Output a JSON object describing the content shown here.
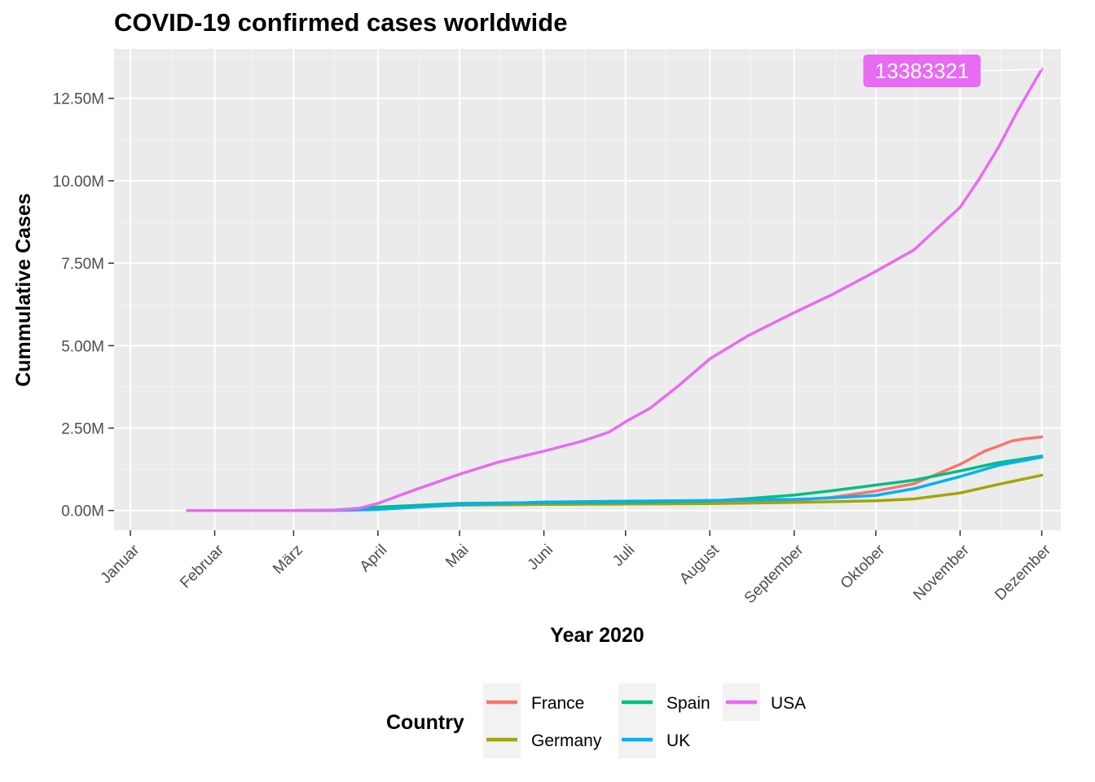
{
  "chart_data": {
    "type": "line",
    "title": "COVID-19 confirmed cases worldwide",
    "xlabel": "Year 2020",
    "ylabel": "Cummulative Cases",
    "x_ticks": [
      "Januar",
      "Februar",
      "März",
      "April",
      "Mai",
      "Juni",
      "Juli",
      "August",
      "September",
      "Oktober",
      "November",
      "Dezember"
    ],
    "y_ticks": [
      "0.00M",
      "2.50M",
      "5.00M",
      "7.50M",
      "10.00M",
      "12.50M"
    ],
    "ylim": [
      -600000,
      14000000
    ],
    "xlim": [
      "2019-12-26",
      "2020-12-08"
    ],
    "grid": true,
    "legend": {
      "title": "Country",
      "position": "bottom",
      "entries": [
        "France",
        "Germany",
        "Spain",
        "UK",
        "USA"
      ]
    },
    "annotation": {
      "text": "13383321",
      "series": "USA",
      "x": "2020-12-01",
      "y": 13383321
    },
    "series": [
      {
        "name": "France",
        "color": "#F8766D",
        "points": [
          [
            "2020-01-22",
            0
          ],
          [
            "2020-03-01",
            100
          ],
          [
            "2020-03-15",
            5400
          ],
          [
            "2020-04-01",
            57000
          ],
          [
            "2020-05-01",
            168000
          ],
          [
            "2020-06-01",
            189000
          ],
          [
            "2020-07-01",
            202000
          ],
          [
            "2020-08-01",
            226000
          ],
          [
            "2020-09-01",
            303000
          ],
          [
            "2020-09-15",
            400000
          ],
          [
            "2020-10-01",
            590000
          ],
          [
            "2020-10-15",
            810000
          ],
          [
            "2020-11-01",
            1400000
          ],
          [
            "2020-11-10",
            1800000
          ],
          [
            "2020-11-15",
            1950000
          ],
          [
            "2020-11-20",
            2110000
          ],
          [
            "2020-11-25",
            2180000
          ],
          [
            "2020-12-01",
            2230000
          ]
        ]
      },
      {
        "name": "Germany",
        "color": "#A3A500",
        "points": [
          [
            "2020-01-22",
            0
          ],
          [
            "2020-03-01",
            130
          ],
          [
            "2020-03-15",
            5800
          ],
          [
            "2020-04-01",
            77000
          ],
          [
            "2020-05-01",
            163000
          ],
          [
            "2020-06-01",
            183000
          ],
          [
            "2020-07-01",
            195000
          ],
          [
            "2020-08-01",
            211000
          ],
          [
            "2020-09-01",
            245000
          ],
          [
            "2020-10-01",
            295000
          ],
          [
            "2020-10-15",
            350000
          ],
          [
            "2020-11-01",
            532000
          ],
          [
            "2020-11-15",
            790000
          ],
          [
            "2020-12-01",
            1070000
          ]
        ]
      },
      {
        "name": "Spain",
        "color": "#00BF7D",
        "points": [
          [
            "2020-01-22",
            0
          ],
          [
            "2020-03-01",
            80
          ],
          [
            "2020-03-15",
            7800
          ],
          [
            "2020-04-01",
            104000
          ],
          [
            "2020-05-01",
            214000
          ],
          [
            "2020-06-01",
            240000
          ],
          [
            "2020-07-01",
            250000
          ],
          [
            "2020-08-01",
            290000
          ],
          [
            "2020-08-15",
            360000
          ],
          [
            "2020-09-01",
            470000
          ],
          [
            "2020-09-15",
            600000
          ],
          [
            "2020-10-01",
            770000
          ],
          [
            "2020-10-15",
            920000
          ],
          [
            "2020-11-01",
            1200000
          ],
          [
            "2020-11-15",
            1450000
          ],
          [
            "2020-12-01",
            1650000
          ]
        ]
      },
      {
        "name": "UK",
        "color": "#00B0F6",
        "points": [
          [
            "2020-01-22",
            0
          ],
          [
            "2020-03-01",
            36
          ],
          [
            "2020-03-15",
            1400
          ],
          [
            "2020-04-01",
            30000
          ],
          [
            "2020-05-01",
            178000
          ],
          [
            "2020-06-01",
            254000
          ],
          [
            "2020-07-01",
            284000
          ],
          [
            "2020-08-01",
            304000
          ],
          [
            "2020-09-01",
            339000
          ],
          [
            "2020-09-15",
            380000
          ],
          [
            "2020-10-01",
            460000
          ],
          [
            "2020-10-15",
            660000
          ],
          [
            "2020-11-01",
            1030000
          ],
          [
            "2020-11-15",
            1370000
          ],
          [
            "2020-12-01",
            1620000
          ]
        ]
      },
      {
        "name": "USA",
        "color": "#E76BF3",
        "points": [
          [
            "2020-01-22",
            0
          ],
          [
            "2020-03-01",
            75
          ],
          [
            "2020-03-15",
            3500
          ],
          [
            "2020-03-25",
            65000
          ],
          [
            "2020-04-01",
            215000
          ],
          [
            "2020-04-15",
            640000
          ],
          [
            "2020-05-01",
            1100000
          ],
          [
            "2020-05-15",
            1460000
          ],
          [
            "2020-06-01",
            1800000
          ],
          [
            "2020-06-15",
            2100000
          ],
          [
            "2020-06-25",
            2380000
          ],
          [
            "2020-07-01",
            2690000
          ],
          [
            "2020-07-10",
            3100000
          ],
          [
            "2020-07-20",
            3750000
          ],
          [
            "2020-08-01",
            4600000
          ],
          [
            "2020-08-15",
            5300000
          ],
          [
            "2020-09-01",
            6000000
          ],
          [
            "2020-09-15",
            6550000
          ],
          [
            "2020-10-01",
            7250000
          ],
          [
            "2020-10-15",
            7900000
          ],
          [
            "2020-11-01",
            9200000
          ],
          [
            "2020-11-08",
            10050000
          ],
          [
            "2020-11-15",
            11000000
          ],
          [
            "2020-11-22",
            12100000
          ],
          [
            "2020-12-01",
            13383321
          ]
        ]
      }
    ]
  }
}
